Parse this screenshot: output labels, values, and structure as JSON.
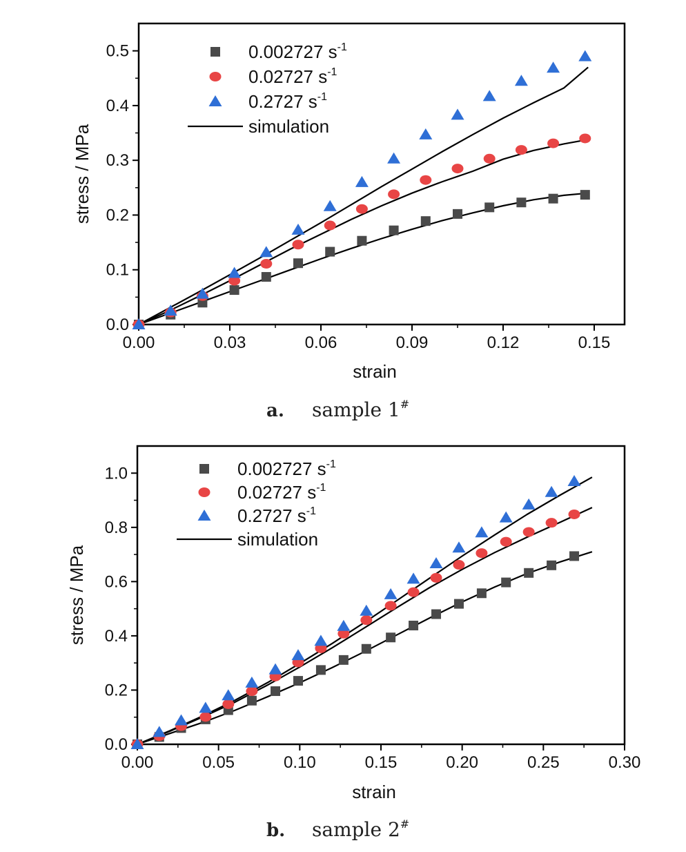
{
  "chart_data": [
    {
      "type": "scatter",
      "caption_letter": "a.",
      "caption_text": "sample 1",
      "caption_sup": "#",
      "xlabel": "strain",
      "ylabel": "stress / MPa",
      "xlim": [
        0,
        0.16
      ],
      "ylim": [
        0,
        0.55
      ],
      "xticks": [
        0.0,
        0.03,
        0.06,
        0.09,
        0.12,
        0.15
      ],
      "xtick_labels": [
        "0.00",
        "0.03",
        "0.06",
        "0.09",
        "0.12",
        "0.15"
      ],
      "yticks": [
        0.0,
        0.1,
        0.2,
        0.3,
        0.4,
        0.5
      ],
      "ytick_labels": [
        "0.0",
        "0.1",
        "0.2",
        "0.3",
        "0.4",
        "0.5"
      ],
      "grid": false,
      "legend_position": "top-left",
      "series": [
        {
          "name": "0.002727 s",
          "name_sup": "-1",
          "marker": "square",
          "color": "#4a4a4a",
          "x": [
            0.0,
            0.0105,
            0.021,
            0.0315,
            0.042,
            0.0525,
            0.063,
            0.0735,
            0.084,
            0.0945,
            0.105,
            0.1155,
            0.126,
            0.1365,
            0.147
          ],
          "y": [
            0.0,
            0.018,
            0.04,
            0.063,
            0.087,
            0.112,
            0.133,
            0.153,
            0.172,
            0.189,
            0.202,
            0.214,
            0.223,
            0.23,
            0.237
          ]
        },
        {
          "name": "0.02727 s",
          "name_sup": "-1",
          "marker": "circle",
          "color": "#e84545",
          "x": [
            0.0,
            0.0105,
            0.021,
            0.0315,
            0.042,
            0.0525,
            0.063,
            0.0735,
            0.084,
            0.0945,
            0.105,
            0.1155,
            0.126,
            0.1365,
            0.147
          ],
          "y": [
            0.0,
            0.022,
            0.052,
            0.08,
            0.111,
            0.146,
            0.181,
            0.211,
            0.238,
            0.264,
            0.285,
            0.303,
            0.319,
            0.331,
            0.34
          ]
        },
        {
          "name": "0.2727 s",
          "name_sup": "-1",
          "marker": "triangle",
          "color": "#2f6fd6",
          "x": [
            0.0,
            0.0105,
            0.021,
            0.0315,
            0.042,
            0.0525,
            0.063,
            0.0735,
            0.084,
            0.0945,
            0.105,
            0.1155,
            0.126,
            0.1365,
            0.147
          ],
          "y": [
            0.0,
            0.025,
            0.056,
            0.094,
            0.132,
            0.173,
            0.216,
            0.26,
            0.303,
            0.347,
            0.383,
            0.417,
            0.445,
            0.469,
            0.49
          ]
        }
      ],
      "simulation": {
        "name": "simulation",
        "color": "#000000",
        "curves": [
          {
            "x": [
              0,
              0.01,
              0.02,
              0.03,
              0.04,
              0.05,
              0.06,
              0.07,
              0.08,
              0.09,
              0.1,
              0.11,
              0.12,
              0.13,
              0.14,
              0.148
            ],
            "y": [
              0,
              0.02,
              0.04,
              0.06,
              0.08,
              0.1,
              0.12,
              0.139,
              0.157,
              0.174,
              0.19,
              0.204,
              0.217,
              0.228,
              0.236,
              0.24
            ]
          },
          {
            "x": [
              0,
              0.01,
              0.02,
              0.03,
              0.04,
              0.05,
              0.06,
              0.07,
              0.08,
              0.09,
              0.1,
              0.11,
              0.12,
              0.13,
              0.14,
              0.148
            ],
            "y": [
              0,
              0.025,
              0.052,
              0.08,
              0.109,
              0.138,
              0.165,
              0.192,
              0.217,
              0.24,
              0.261,
              0.28,
              0.302,
              0.318,
              0.33,
              0.338
            ]
          },
          {
            "x": [
              0,
              0.01,
              0.02,
              0.03,
              0.04,
              0.05,
              0.06,
              0.07,
              0.08,
              0.09,
              0.1,
              0.11,
              0.12,
              0.13,
              0.14,
              0.148
            ],
            "y": [
              0,
              0.03,
              0.06,
              0.091,
              0.122,
              0.154,
              0.186,
              0.219,
              0.252,
              0.284,
              0.316,
              0.347,
              0.377,
              0.405,
              0.432,
              0.47
            ]
          }
        ]
      }
    },
    {
      "type": "scatter",
      "caption_letter": "b.",
      "caption_text": "sample 2",
      "caption_sup": "#",
      "xlabel": "strain",
      "ylabel": "stress / MPa",
      "xlim": [
        0,
        0.3
      ],
      "ylim": [
        0,
        1.1
      ],
      "xticks": [
        0.0,
        0.05,
        0.1,
        0.15,
        0.2,
        0.25,
        0.3
      ],
      "xtick_labels": [
        "0.00",
        "0.05",
        "0.10",
        "0.15",
        "0.20",
        "0.25",
        "0.30"
      ],
      "yticks": [
        0.0,
        0.2,
        0.4,
        0.6,
        0.8,
        1.0
      ],
      "ytick_labels": [
        "0.0",
        "0.2",
        "0.4",
        "0.6",
        "0.8",
        "1.0"
      ],
      "grid": false,
      "legend_position": "top-left",
      "series": [
        {
          "name": "0.002727 s",
          "name_sup": "-1",
          "marker": "square",
          "color": "#4a4a4a",
          "x": [
            0.0,
            0.0135,
            0.027,
            0.042,
            0.056,
            0.0705,
            0.085,
            0.099,
            0.113,
            0.127,
            0.141,
            0.156,
            0.17,
            0.184,
            0.198,
            0.212,
            0.227,
            0.241,
            0.255,
            0.269
          ],
          "y": [
            0.0,
            0.027,
            0.06,
            0.092,
            0.126,
            0.161,
            0.196,
            0.234,
            0.274,
            0.311,
            0.352,
            0.394,
            0.438,
            0.48,
            0.518,
            0.557,
            0.597,
            0.632,
            0.66,
            0.694
          ]
        },
        {
          "name": "0.02727 s",
          "name_sup": "-1",
          "marker": "circle",
          "color": "#e84545",
          "x": [
            0.0,
            0.0135,
            0.027,
            0.042,
            0.056,
            0.0705,
            0.085,
            0.099,
            0.113,
            0.127,
            0.141,
            0.156,
            0.17,
            0.184,
            0.198,
            0.212,
            0.227,
            0.241,
            0.255,
            0.269
          ],
          "y": [
            0.0,
            0.03,
            0.067,
            0.101,
            0.148,
            0.196,
            0.25,
            0.302,
            0.354,
            0.408,
            0.458,
            0.511,
            0.561,
            0.614,
            0.662,
            0.705,
            0.747,
            0.783,
            0.817,
            0.848
          ]
        },
        {
          "name": "0.2727 s",
          "name_sup": "-1",
          "marker": "triangle",
          "color": "#2f6fd6",
          "x": [
            0.0,
            0.0135,
            0.027,
            0.042,
            0.056,
            0.0705,
            0.085,
            0.099,
            0.113,
            0.127,
            0.141,
            0.156,
            0.17,
            0.184,
            0.198,
            0.212,
            0.227,
            0.241,
            0.255,
            0.269
          ],
          "y": [
            0.0,
            0.045,
            0.088,
            0.134,
            0.18,
            0.227,
            0.276,
            0.328,
            0.381,
            0.436,
            0.492,
            0.553,
            0.61,
            0.667,
            0.725,
            0.781,
            0.836,
            0.884,
            0.93,
            0.97
          ]
        }
      ],
      "simulation": {
        "name": "simulation",
        "color": "#000000",
        "curves": [
          {
            "x": [
              0,
              0.02,
              0.04,
              0.06,
              0.08,
              0.1,
              0.12,
              0.14,
              0.16,
              0.18,
              0.2,
              0.22,
              0.24,
              0.26,
              0.28
            ],
            "y": [
              0,
              0.04,
              0.08,
              0.125,
              0.175,
              0.227,
              0.283,
              0.342,
              0.404,
              0.466,
              0.525,
              0.58,
              0.63,
              0.672,
              0.71
            ]
          },
          {
            "x": [
              0,
              0.02,
              0.04,
              0.06,
              0.08,
              0.1,
              0.12,
              0.14,
              0.16,
              0.18,
              0.2,
              0.22,
              0.24,
              0.26,
              0.28
            ],
            "y": [
              0,
              0.048,
              0.1,
              0.155,
              0.218,
              0.285,
              0.356,
              0.43,
              0.505,
              0.578,
              0.645,
              0.707,
              0.764,
              0.818,
              0.873
            ]
          },
          {
            "x": [
              0,
              0.02,
              0.04,
              0.06,
              0.08,
              0.1,
              0.12,
              0.14,
              0.16,
              0.18,
              0.2,
              0.22,
              0.24,
              0.26,
              0.28
            ],
            "y": [
              0,
              0.05,
              0.104,
              0.162,
              0.227,
              0.298,
              0.372,
              0.45,
              0.531,
              0.613,
              0.694,
              0.772,
              0.848,
              0.918,
              0.985
            ]
          }
        ]
      }
    }
  ]
}
